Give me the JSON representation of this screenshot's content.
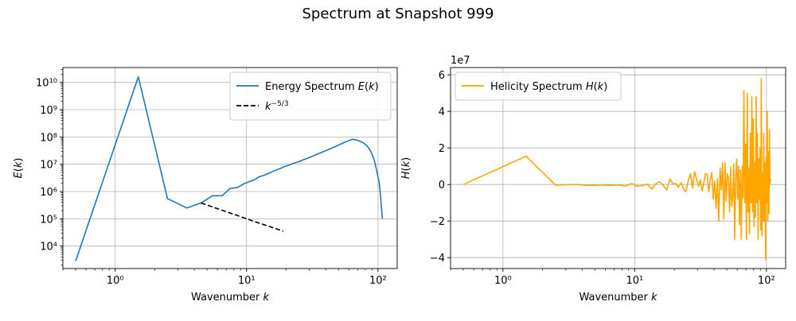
{
  "figure": {
    "title": "Spectrum at Snapshot 999"
  },
  "chart_data": [
    {
      "type": "line",
      "xscale": "log",
      "yscale": "log",
      "xlabel": "Wavenumber k",
      "ylabel": "E(k)",
      "xlim": [
        0.4,
        140
      ],
      "ylim": [
        1500,
        35000000000
      ],
      "grid": true,
      "legend_position": "top-right",
      "x_ticks": [
        1,
        10,
        100
      ],
      "x_tick_labels": [
        "10⁰",
        "10¹",
        "10²"
      ],
      "y_ticks": [
        10000,
        100000,
        1000000,
        10000000,
        100000000,
        1000000000,
        10000000000
      ],
      "y_tick_labels": [
        "10⁴",
        "10⁵",
        "10⁶",
        "10⁷",
        "10⁸",
        "10⁹",
        "10¹⁰"
      ],
      "series": [
        {
          "name": "Energy Spectrum E(k)",
          "color": "#1f77b4",
          "dash": "solid",
          "x": [
            0.5,
            1.5,
            2.5,
            3.5,
            4.5,
            5.5,
            6.5,
            7.5,
            8.5,
            9.5,
            10.5,
            11.5,
            12.5,
            13.5,
            14.5,
            15.5,
            16.5,
            17.5,
            18.5,
            19.5,
            21,
            23,
            25,
            27,
            29,
            32,
            35,
            38,
            41,
            44,
            47,
            50,
            53,
            56,
            59,
            62,
            64,
            66,
            70,
            74,
            78,
            82,
            86,
            90,
            94,
            98,
            102,
            104,
            106,
            108
          ],
          "y": [
            2800,
            16000000000,
            550000,
            250000,
            380000,
            700000,
            700000,
            1300000,
            1400000,
            1900000,
            2300000,
            2700000,
            3500000,
            3900000,
            4500000,
            5200000,
            5900000,
            6600000,
            7400000,
            8200000,
            9300000,
            11000000,
            12500000,
            14500000,
            16500000,
            20000000,
            24000000,
            28500000,
            33000000,
            38000000,
            44000000,
            50000000,
            57000000,
            64000000,
            71000000,
            78000000,
            82000000,
            80000000,
            75000000,
            68000000,
            59000000,
            48000000,
            36000000,
            24000000,
            13000000,
            5500000,
            2200000,
            900000,
            300000,
            100000
          ]
        },
        {
          "name": "k^{-5/3}",
          "color": "#000000",
          "dash": "dashed",
          "x": [
            4.5,
            6,
            8,
            10,
            12,
            14,
            16,
            19
          ],
          "y": [
            380000,
            236000,
            146000,
            100000,
            74000,
            57800,
            46600,
            35000
          ]
        }
      ]
    },
    {
      "type": "line",
      "xscale": "log",
      "yscale": "linear",
      "xlabel": "Wavenumber k",
      "ylabel": "H(k)",
      "offset_text": "1e7",
      "xlim": [
        0.4,
        140
      ],
      "ylim": [
        -4.6,
        6.4
      ],
      "grid": true,
      "legend_position": "top-left",
      "x_ticks": [
        1,
        10,
        100
      ],
      "x_tick_labels": [
        "10⁰",
        "10¹",
        "10²"
      ],
      "y_ticks": [
        -4,
        -2,
        0,
        2,
        4,
        6
      ],
      "y_tick_labels": [
        "−4",
        "−2",
        "0",
        "2",
        "4",
        "6"
      ],
      "series": [
        {
          "name": "Helicity Spectrum H(k)",
          "color": "#ffa500",
          "dash": "solid",
          "x": [
            0.5,
            1.5,
            2.5,
            3.5,
            4.5,
            5.5,
            6.5,
            7.5,
            8.5,
            9.5,
            10.5,
            11.5,
            12.5,
            13.5,
            14.5,
            15.5,
            16.5,
            17.5,
            18.5,
            19.5,
            20.5,
            21.5,
            22.5,
            23.5,
            24.5,
            25.5,
            26.5,
            27.5,
            28.5,
            29.5,
            30.5,
            31.5,
            32.5,
            33.5,
            34.5,
            35.5,
            36.5,
            37.5,
            38.5,
            39.5,
            40.5,
            41.5,
            42.5,
            43.5,
            44.5,
            45.5,
            46.5,
            47.5,
            48.5,
            49.5,
            50.5,
            51.5,
            52.5,
            53.5,
            54.5,
            55.5,
            56.5,
            57.5,
            58.5,
            59.5,
            60.5,
            61.5,
            62.5,
            63.5,
            64.5,
            65.5,
            66.5,
            67.5,
            68.5,
            69.5,
            70.5,
            71.5,
            72.5,
            73.5,
            74.5,
            75.5,
            76.5,
            77.5,
            78.5,
            79.5,
            80.5,
            81.5,
            82.5,
            83.5,
            84.5,
            85.5,
            86.5,
            87.5,
            88.5,
            89.5,
            90.5,
            91.5,
            92.5,
            93.5,
            94.5,
            95.5,
            96.5,
            97.5,
            98.5,
            99.5,
            100.5,
            101.5,
            102.5,
            103.5,
            104.5,
            105.5,
            106.5,
            107.5
          ],
          "y": [
            0.0,
            1.55,
            -0.03,
            0.0,
            -0.05,
            -0.02,
            -0.05,
            -0.03,
            -0.08,
            0.05,
            -0.1,
            -0.05,
            0.02,
            -0.25,
            0.05,
            0.15,
            -0.05,
            -0.3,
            0.3,
            0.05,
            0.05,
            -0.15,
            0.1,
            -0.25,
            -0.4,
            0.2,
            0.6,
            -0.2,
            0.7,
            0.3,
            -0.1,
            0.25,
            -0.35,
            0.1,
            0.6,
            0.55,
            -0.4,
            0.3,
            0.65,
            -0.8,
            0.2,
            -1.3,
            0.3,
            -2.0,
            0.9,
            -0.3,
            1.2,
            -1.9,
            1.2,
            -0.9,
            0.6,
            0.4,
            -1.5,
            0.95,
            -1.2,
            -0.7,
            1.1,
            -3.0,
            0.6,
            1.4,
            -0.8,
            1.0,
            -2.2,
            0.8,
            -3.0,
            1.0,
            -0.7,
            5.15,
            -1.0,
            2.2,
            -3.0,
            5.0,
            -1.5,
            0.9,
            -2.7,
            2.8,
            -1.0,
            4.8,
            -1.5,
            3.6,
            -2.3,
            1.2,
            -1.8,
            4.8,
            -1.0,
            2.8,
            -3.0,
            1.4,
            -0.8,
            2.0,
            -2.5,
            5.8,
            -2.8,
            0.6,
            -2.0,
            2.8,
            -2.0,
            1.2,
            -4.1,
            1.5,
            -1.0,
            4.0,
            -2.0,
            1.8,
            -1.6,
            3.0,
            0.0,
            0.3
          ]
        }
      ]
    }
  ]
}
